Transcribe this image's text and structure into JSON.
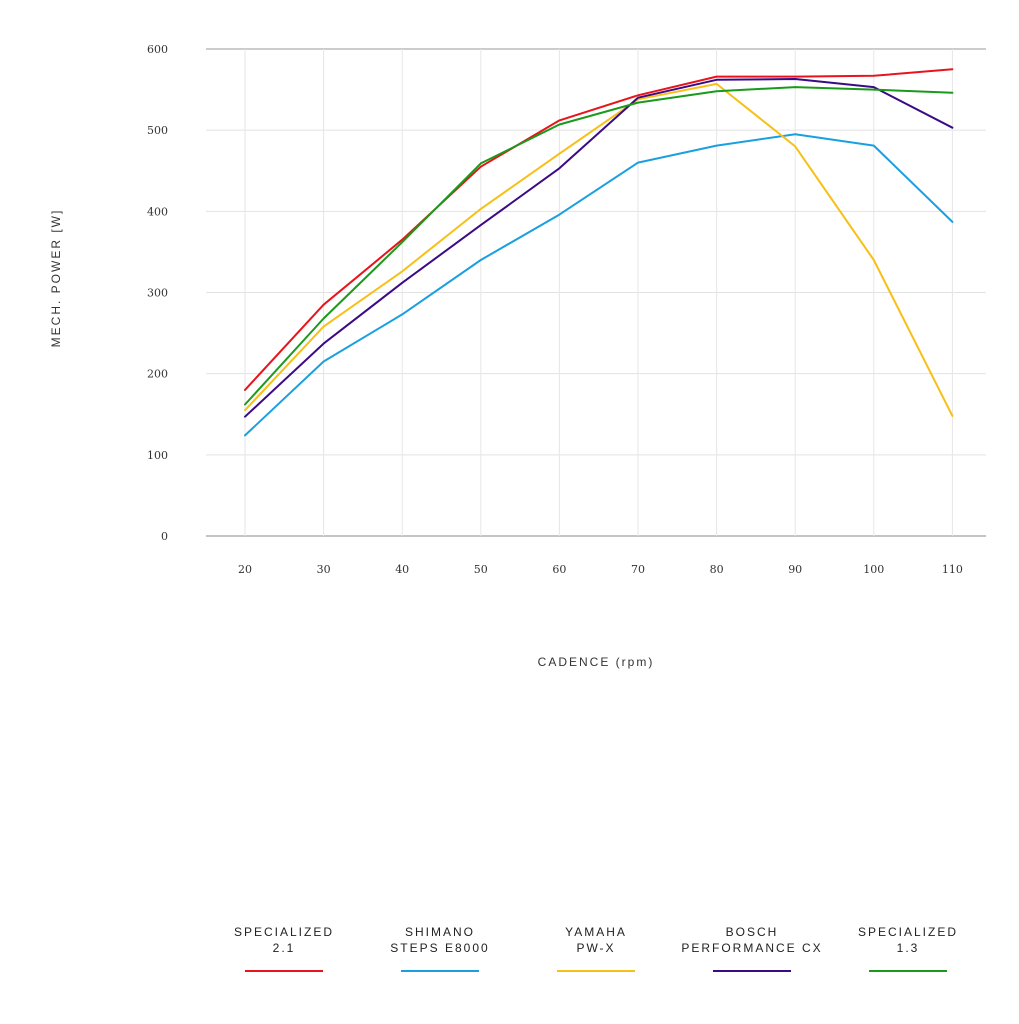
{
  "chart_data": {
    "type": "line",
    "title": "",
    "xlabel": "CADENCE (rpm)",
    "ylabel": "MECH. POWER [W]",
    "x": [
      20,
      30,
      40,
      50,
      60,
      70,
      80,
      90,
      100,
      110
    ],
    "ylim": [
      0,
      600
    ],
    "yticks": [
      0,
      100,
      200,
      300,
      400,
      500,
      600
    ],
    "grid": true,
    "legend_position": "bottom",
    "series": [
      {
        "name": "SPECIALIZED 2.1",
        "line1": "SPECIALIZED",
        "line2": "2.1",
        "color": "#e8141b",
        "values": [
          180,
          285,
          365,
          455,
          512,
          543,
          566,
          566,
          567,
          575
        ]
      },
      {
        "name": "SHIMANO STEPS E8000",
        "line1": "SHIMANO",
        "line2": "STEPS E8000",
        "color": "#1a9fe0",
        "values": [
          124,
          215,
          273,
          340,
          396,
          460,
          481,
          495,
          481,
          387
        ]
      },
      {
        "name": "YAMAHA PW-X",
        "line1": "YAMAHA",
        "line2": "PW-X",
        "color": "#f8bf15",
        "values": [
          155,
          258,
          326,
          403,
          471,
          538,
          557,
          480,
          340,
          148
        ]
      },
      {
        "name": "BOSCH PERFORMANCE CX",
        "line1": "BOSCH",
        "line2": "PERFORMANCE CX",
        "color": "#3b0a85",
        "values": [
          147,
          237,
          312,
          383,
          453,
          540,
          562,
          563,
          553,
          503
        ]
      },
      {
        "name": "SPECIALIZED 1.3",
        "line1": "SPECIALIZED",
        "line2": "1.3",
        "color": "#1a9a1a",
        "values": [
          162,
          268,
          362,
          459,
          507,
          534,
          548,
          553,
          550,
          546
        ]
      }
    ]
  }
}
